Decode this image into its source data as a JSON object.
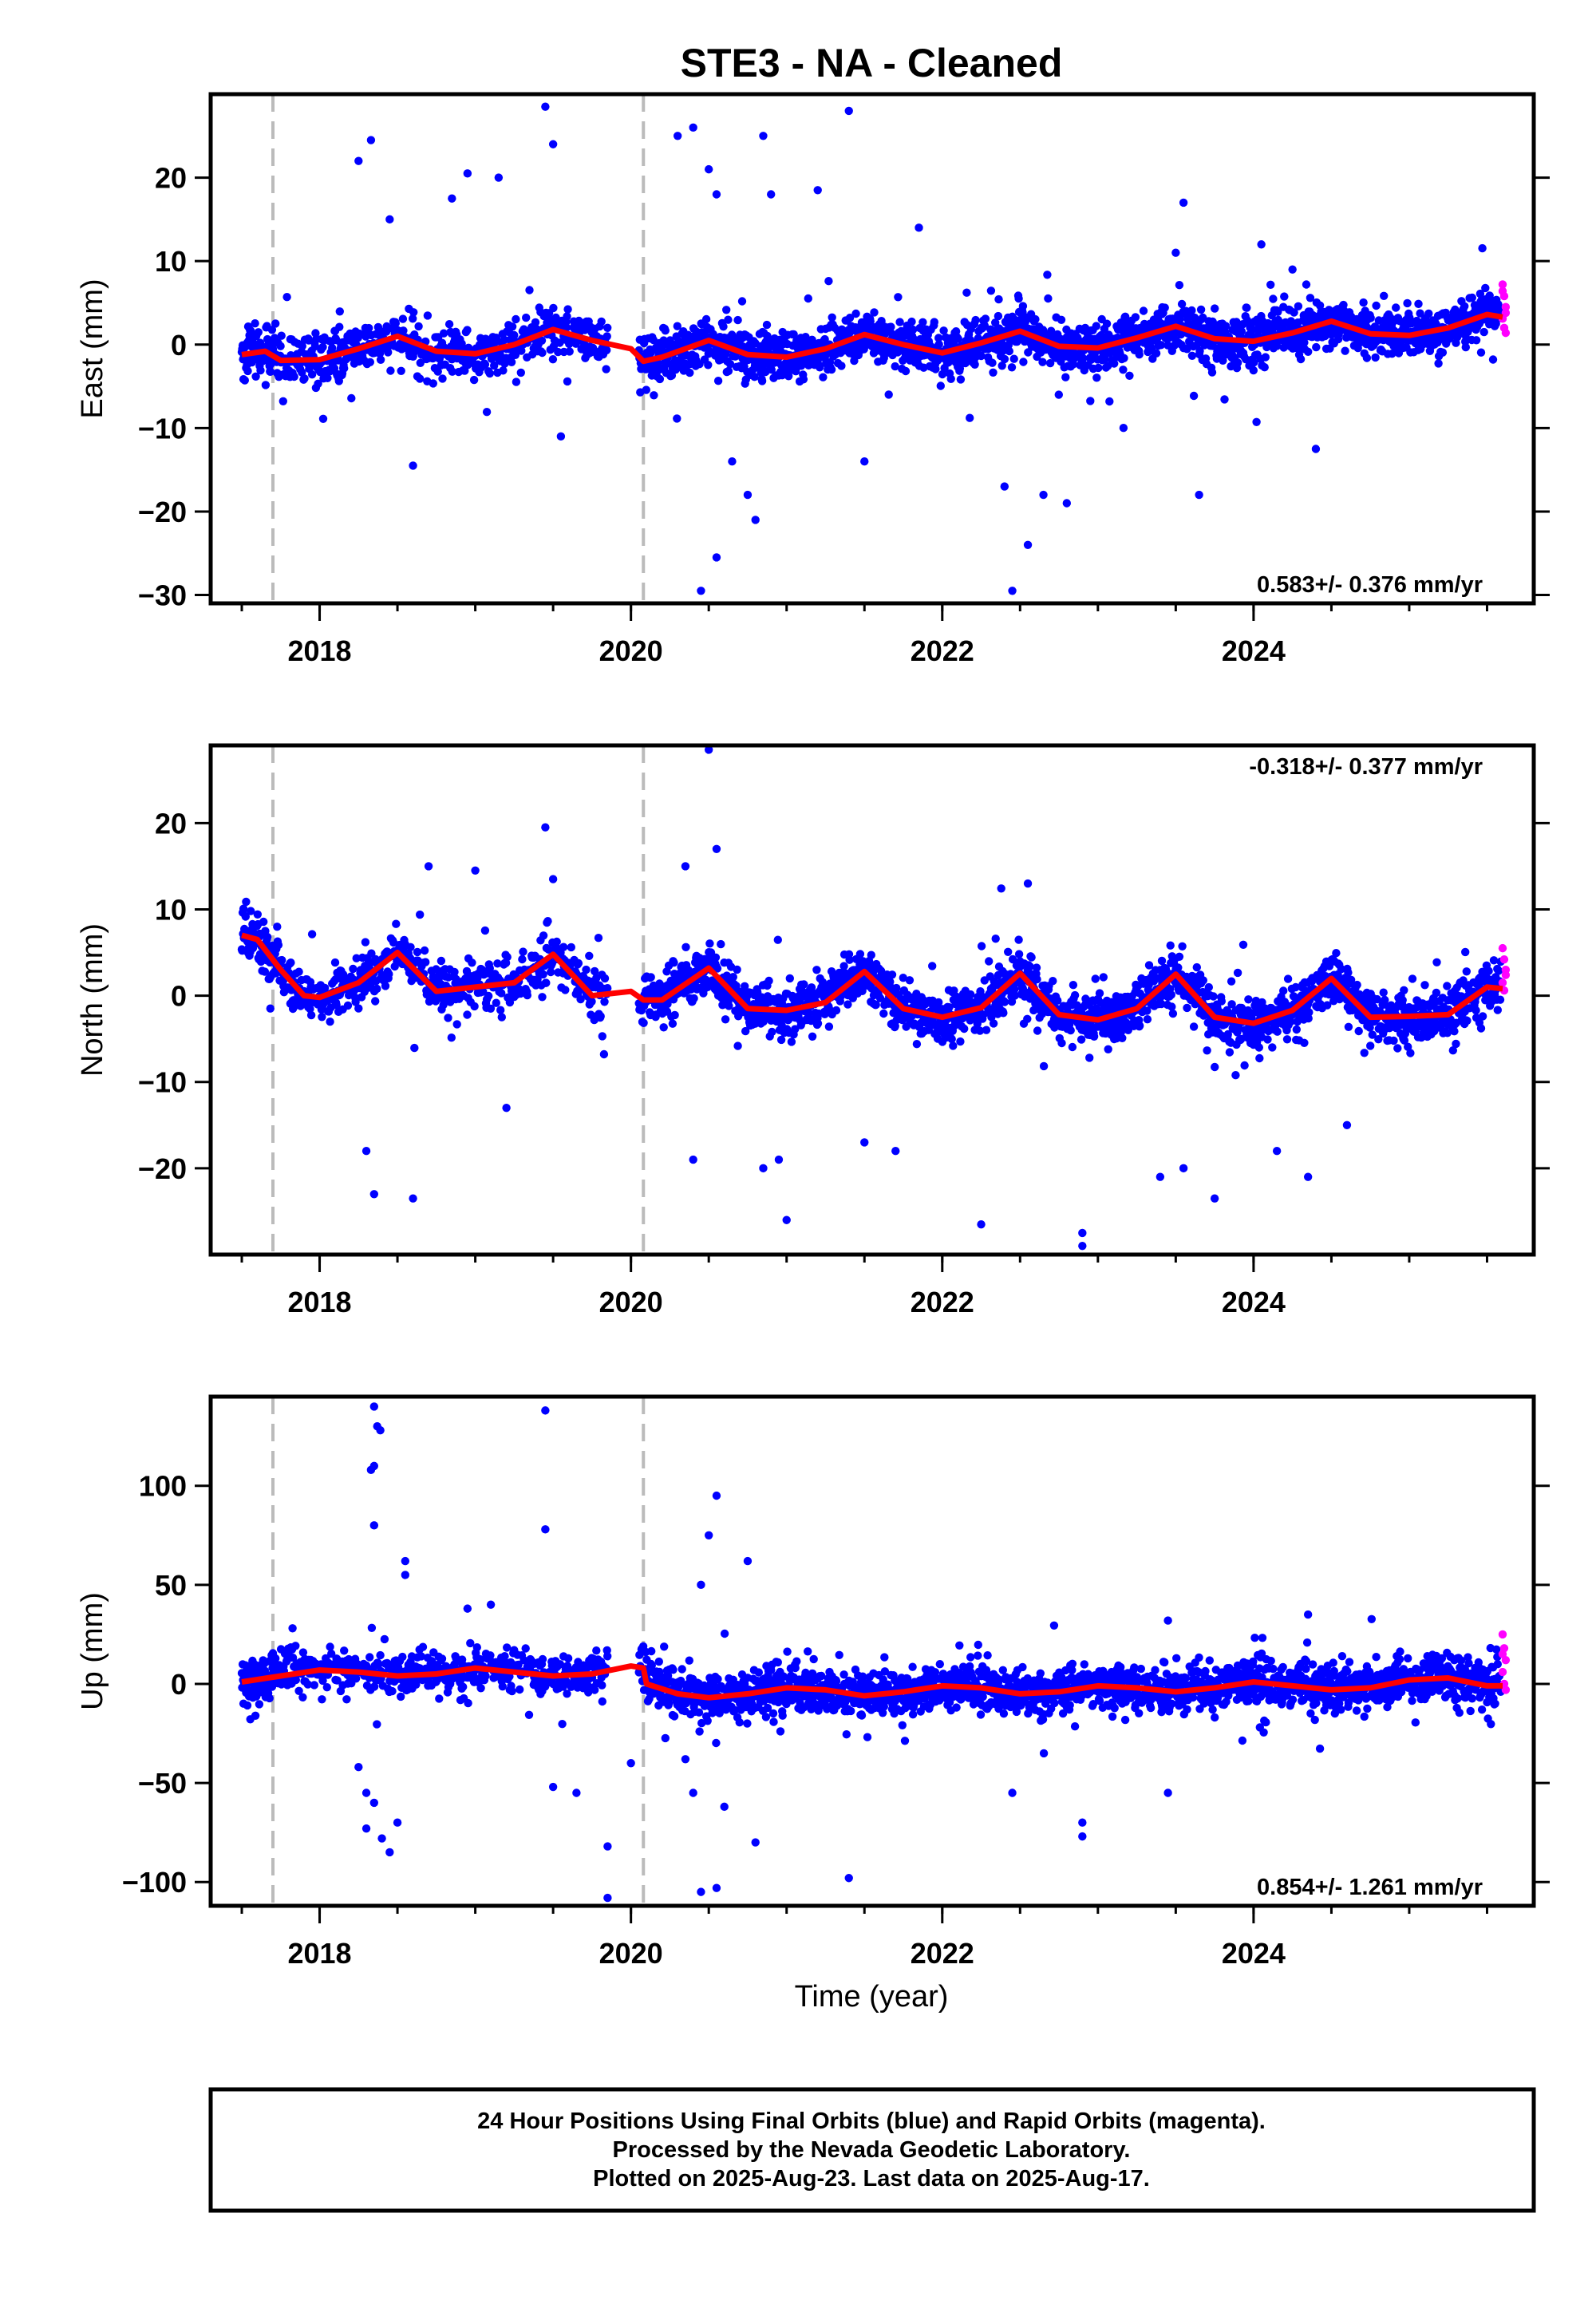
{
  "title": "STE3  - NA - Cleaned",
  "x_axis_label": "Time (year)",
  "footer": {
    "line1": "24 Hour Positions Using Final Orbits (blue) and Rapid Orbits (magenta).",
    "line2": "Processed by the Nevada Geodetic Laboratory.",
    "line3": "Plotted on 2025-Aug-23. Last data on 2025-Aug-17."
  },
  "colors": {
    "final_orbits": "#0000ff",
    "rapid_orbits": "#ff00ff",
    "model": "#ff0000",
    "offset_lines": "#bbbbbb"
  },
  "chart_data": [
    {
      "type": "scatter",
      "component": "east",
      "ylabel": "East (mm)",
      "xlim": [
        2017.3,
        2025.8
      ],
      "ylim": [
        -31,
        30
      ],
      "x_ticks": [
        2018,
        2020,
        2022,
        2024
      ],
      "y_ticks": [
        -30,
        -20,
        -10,
        0,
        10,
        20
      ],
      "rate_text": "0.583+/- 0.376 mm/yr",
      "rate_position": "bottom-right",
      "offset_epochs": [
        2017.7,
        2020.08
      ],
      "model_line": {
        "x": [
          2017.5,
          2017.65,
          2017.75,
          2018.0,
          2018.25,
          2018.5,
          2018.75,
          2019.0,
          2019.25,
          2019.5,
          2019.75,
          2020.0,
          2020.08,
          2020.2,
          2020.5,
          2020.75,
          2021.0,
          2021.25,
          2021.5,
          2021.75,
          2022.0,
          2022.25,
          2022.5,
          2022.75,
          2023.0,
          2023.25,
          2023.5,
          2023.75,
          2024.0,
          2024.25,
          2024.5,
          2024.75,
          2025.0,
          2025.25,
          2025.5,
          2025.6
        ],
        "y": [
          -1.2,
          -0.8,
          -1.9,
          -1.8,
          -0.5,
          1.0,
          -0.8,
          -1.1,
          0.0,
          1.8,
          0.5,
          -0.5,
          -2.0,
          -1.5,
          0.5,
          -1.2,
          -1.5,
          -0.5,
          1.2,
          0.0,
          -1.0,
          0.2,
          1.6,
          -0.2,
          -0.4,
          0.8,
          2.2,
          0.7,
          0.4,
          1.4,
          2.8,
          1.3,
          1.1,
          2.0,
          3.6,
          3.3
        ]
      },
      "outliers": [
        [
          2018.25,
          22
        ],
        [
          2018.33,
          24.5
        ],
        [
          2018.45,
          15
        ],
        [
          2018.6,
          -14.5
        ],
        [
          2018.85,
          17.5
        ],
        [
          2018.95,
          20.5
        ],
        [
          2019.15,
          20
        ],
        [
          2019.45,
          28.5
        ],
        [
          2019.5,
          24
        ],
        [
          2019.55,
          -11
        ],
        [
          2020.3,
          25
        ],
        [
          2020.4,
          26
        ],
        [
          2020.5,
          21
        ],
        [
          2020.55,
          18
        ],
        [
          2020.65,
          -14
        ],
        [
          2020.75,
          -18
        ],
        [
          2020.8,
          -21
        ],
        [
          2020.85,
          25
        ],
        [
          2020.9,
          18
        ],
        [
          2021.2,
          18.5
        ],
        [
          2021.4,
          28
        ],
        [
          2021.5,
          -14
        ],
        [
          2021.85,
          14
        ],
        [
          2022.4,
          -17
        ],
        [
          2022.45,
          -29.5
        ],
        [
          2022.55,
          -24
        ],
        [
          2022.65,
          -18
        ],
        [
          2022.8,
          -19
        ],
        [
          2023.5,
          11
        ],
        [
          2023.55,
          17
        ],
        [
          2023.65,
          -18
        ],
        [
          2024.05,
          12
        ],
        [
          2024.4,
          -12.5
        ],
        [
          2020.45,
          -29.5
        ],
        [
          2020.55,
          -25.5
        ],
        [
          2024.25,
          9
        ]
      ],
      "rapid_points": [
        [
          2025.6,
          7.2
        ],
        [
          2025.61,
          5.8
        ],
        [
          2025.62,
          4.5
        ],
        [
          2025.6,
          3.1
        ],
        [
          2025.61,
          2.0
        ],
        [
          2025.62,
          1.4
        ],
        [
          2025.6,
          6.4
        ],
        [
          2025.62,
          3.8
        ]
      ]
    },
    {
      "type": "scatter",
      "component": "north",
      "ylabel": "North (mm)",
      "xlim": [
        2017.3,
        2025.8
      ],
      "ylim": [
        -30,
        29
      ],
      "x_ticks": [
        2018,
        2020,
        2022,
        2024
      ],
      "y_ticks": [
        -20,
        -10,
        0,
        10,
        20
      ],
      "rate_text": "-0.318+/- 0.377 mm/yr",
      "rate_position": "top-right",
      "offset_epochs": [
        2017.7,
        2020.08
      ],
      "model_line": {
        "x": [
          2017.5,
          2017.6,
          2017.75,
          2017.9,
          2018.0,
          2018.25,
          2018.5,
          2018.75,
          2019.0,
          2019.25,
          2019.5,
          2019.75,
          2020.0,
          2020.08,
          2020.2,
          2020.5,
          2020.75,
          2021.0,
          2021.25,
          2021.5,
          2021.75,
          2022.0,
          2022.25,
          2022.5,
          2022.75,
          2023.0,
          2023.25,
          2023.5,
          2023.75,
          2024.0,
          2024.25,
          2024.5,
          2024.75,
          2025.0,
          2025.25,
          2025.5,
          2025.6
        ],
        "y": [
          7.0,
          6.5,
          3.0,
          0.0,
          -0.2,
          1.5,
          5.0,
          0.5,
          1.0,
          1.5,
          4.8,
          0.0,
          0.5,
          -0.5,
          -0.5,
          3.2,
          -1.5,
          -1.7,
          -0.8,
          2.8,
          -1.5,
          -2.5,
          -1.4,
          2.6,
          -2.2,
          -2.8,
          -1.5,
          2.5,
          -2.5,
          -3.2,
          -1.7,
          2.0,
          -2.5,
          -2.4,
          -2.2,
          1.0,
          0.8
        ]
      },
      "outliers": [
        [
          2018.3,
          -18
        ],
        [
          2018.35,
          -23
        ],
        [
          2018.6,
          -23.5
        ],
        [
          2018.7,
          15
        ],
        [
          2019.0,
          14.5
        ],
        [
          2019.2,
          -13
        ],
        [
          2019.45,
          19.5
        ],
        [
          2019.5,
          13.5
        ],
        [
          2020.35,
          15
        ],
        [
          2020.4,
          -19
        ],
        [
          2020.5,
          28.5
        ],
        [
          2020.55,
          17
        ],
        [
          2021.0,
          -26
        ],
        [
          2020.85,
          -20
        ],
        [
          2020.95,
          -19
        ],
        [
          2021.5,
          -17
        ],
        [
          2021.7,
          -18
        ],
        [
          2022.25,
          -26.5
        ],
        [
          2022.55,
          13
        ],
        [
          2022.9,
          -29
        ],
        [
          2022.9,
          -27.5
        ],
        [
          2023.4,
          -21
        ],
        [
          2023.55,
          -20
        ],
        [
          2023.75,
          -23.5
        ],
        [
          2024.35,
          -21
        ],
        [
          2024.15,
          -18
        ],
        [
          2024.6,
          -15
        ]
      ],
      "rapid_points": [
        [
          2025.6,
          5.5
        ],
        [
          2025.61,
          4.2
        ],
        [
          2025.62,
          3.0
        ],
        [
          2025.6,
          1.5
        ],
        [
          2025.61,
          0.6
        ],
        [
          2025.62,
          2.4
        ]
      ]
    },
    {
      "type": "scatter",
      "component": "up",
      "ylabel": "Up (mm)",
      "xlim": [
        2017.3,
        2025.8
      ],
      "ylim": [
        -112,
        145
      ],
      "x_ticks": [
        2018,
        2020,
        2022,
        2024
      ],
      "y_ticks": [
        -100,
        -50,
        0,
        50,
        100
      ],
      "rate_text": "0.854+/- 1.261 mm/yr",
      "rate_position": "bottom-right",
      "offset_epochs": [
        2017.7,
        2020.08
      ],
      "model_line": {
        "x": [
          2017.5,
          2017.75,
          2018.0,
          2018.25,
          2018.5,
          2018.75,
          2019.0,
          2019.25,
          2019.5,
          2019.75,
          2020.0,
          2020.08,
          2020.1,
          2020.3,
          2020.5,
          2020.75,
          2021.0,
          2021.25,
          2021.5,
          2021.75,
          2022.0,
          2022.25,
          2022.5,
          2022.75,
          2023.0,
          2023.25,
          2023.5,
          2023.75,
          2024.0,
          2024.25,
          2024.5,
          2024.75,
          2025.0,
          2025.25,
          2025.5,
          2025.6
        ],
        "y": [
          1,
          4,
          7,
          6,
          4,
          5,
          8,
          6,
          4,
          5,
          9,
          8,
          0,
          -5,
          -7,
          -5,
          -2,
          -3,
          -6,
          -4,
          -1,
          -2,
          -5,
          -4,
          -1,
          -2,
          -4,
          -2,
          1,
          -1,
          -3,
          -2,
          2,
          3,
          -1,
          -1
        ]
      },
      "outliers": [
        [
          2018.35,
          140
        ],
        [
          2018.37,
          130
        ],
        [
          2018.39,
          128
        ],
        [
          2018.35,
          110
        ],
        [
          2018.33,
          108
        ],
        [
          2018.35,
          80
        ],
        [
          2018.55,
          62
        ],
        [
          2018.55,
          55
        ],
        [
          2018.25,
          -42
        ],
        [
          2018.3,
          -55
        ],
        [
          2018.35,
          -60
        ],
        [
          2018.4,
          -78
        ],
        [
          2018.45,
          -85
        ],
        [
          2018.5,
          -70
        ],
        [
          2018.3,
          -73
        ],
        [
          2019.45,
          138
        ],
        [
          2019.45,
          78
        ],
        [
          2019.5,
          -52
        ],
        [
          2019.65,
          -55
        ],
        [
          2019.85,
          -82
        ],
        [
          2019.85,
          -108
        ],
        [
          2020.0,
          -40
        ],
        [
          2020.45,
          50
        ],
        [
          2020.5,
          75
        ],
        [
          2020.55,
          95
        ],
        [
          2020.45,
          -105
        ],
        [
          2020.55,
          -103
        ],
        [
          2020.75,
          62
        ],
        [
          2020.8,
          -80
        ],
        [
          2021.4,
          -98
        ],
        [
          2022.45,
          -55
        ],
        [
          2022.9,
          -70
        ],
        [
          2022.9,
          -77
        ],
        [
          2023.45,
          -55
        ],
        [
          2023.45,
          32
        ],
        [
          2024.35,
          35
        ],
        [
          2020.35,
          -38
        ],
        [
          2020.4,
          -55
        ],
        [
          2020.6,
          -62
        ],
        [
          2018.95,
          38
        ],
        [
          2019.1,
          40
        ]
      ],
      "rapid_points": [
        [
          2025.6,
          25
        ],
        [
          2025.61,
          18
        ],
        [
          2025.62,
          12
        ],
        [
          2025.6,
          6
        ],
        [
          2025.61,
          0
        ],
        [
          2025.62,
          -3
        ],
        [
          2025.6,
          15
        ]
      ]
    }
  ]
}
